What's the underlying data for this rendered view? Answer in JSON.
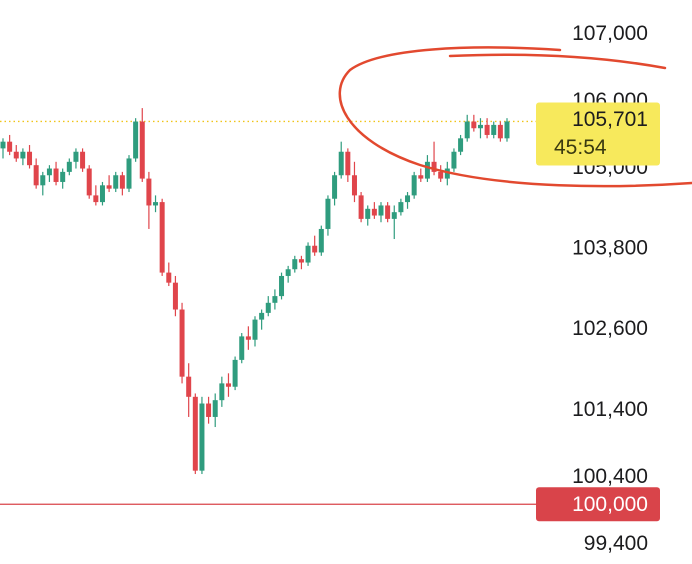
{
  "chart_data": {
    "type": "candlestick",
    "ylim": [
      99110,
      107510
    ],
    "yticks": [
      {
        "value": 107000,
        "label": "107,000"
      },
      {
        "value": 106000,
        "label": "106,000"
      },
      {
        "value": 105000,
        "label": "105,000"
      },
      {
        "value": 103800,
        "label": "103,800"
      },
      {
        "value": 102600,
        "label": "102,600"
      },
      {
        "value": 101400,
        "label": "101,400"
      },
      {
        "value": 100400,
        "label": "100,400"
      },
      {
        "value": 99400,
        "label": "99,400"
      }
    ],
    "up_color": "#2f9c7e",
    "down_color": "#e0454b",
    "candles": [
      [
        105300,
        105450,
        105150,
        105400
      ],
      [
        105400,
        105500,
        105200,
        105250
      ],
      [
        105250,
        105350,
        105100,
        105150
      ],
      [
        105150,
        105300,
        105050,
        105250
      ],
      [
        105250,
        105350,
        105000,
        105050
      ],
      [
        105050,
        105150,
        104700,
        104750
      ],
      [
        104750,
        104950,
        104600,
        104900
      ],
      [
        104900,
        105050,
        104800,
        105000
      ],
      [
        105000,
        105100,
        104750,
        104800
      ],
      [
        104800,
        105000,
        104700,
        104950
      ],
      [
        104950,
        105150,
        104900,
        105100
      ],
      [
        105100,
        105300,
        105000,
        105250
      ],
      [
        105250,
        105300,
        104950,
        105000
      ],
      [
        105000,
        105050,
        104550,
        104600
      ],
      [
        104600,
        104750,
        104450,
        104500
      ],
      [
        104500,
        104800,
        104450,
        104750
      ],
      [
        104750,
        104900,
        104650,
        104700
      ],
      [
        104700,
        104950,
        104650,
        104900
      ],
      [
        104900,
        104950,
        104600,
        104700
      ],
      [
        104700,
        105200,
        104650,
        105150
      ],
      [
        105150,
        105750,
        105100,
        105700
      ],
      [
        105700,
        105900,
        104800,
        104850
      ],
      [
        104850,
        104950,
        104100,
        104450
      ],
      [
        104450,
        104600,
        104350,
        104500
      ],
      [
        104500,
        104550,
        103400,
        103450
      ],
      [
        103450,
        103600,
        103250,
        103300
      ],
      [
        103300,
        103400,
        102800,
        102900
      ],
      [
        102900,
        103000,
        101800,
        101900
      ],
      [
        101900,
        102100,
        101300,
        101600
      ],
      [
        101600,
        101650,
        100450,
        100500
      ],
      [
        100500,
        101600,
        100450,
        101500
      ],
      [
        101500,
        101600,
        101200,
        101300
      ],
      [
        101300,
        101650,
        101150,
        101550
      ],
      [
        101550,
        101900,
        101450,
        101800
      ],
      [
        101800,
        101950,
        101600,
        101750
      ],
      [
        101750,
        102200,
        101700,
        102150
      ],
      [
        102150,
        102550,
        102100,
        102500
      ],
      [
        102500,
        102650,
        102300,
        102450
      ],
      [
        102450,
        102800,
        102350,
        102750
      ],
      [
        102750,
        102900,
        102600,
        102850
      ],
      [
        102850,
        103100,
        102800,
        103000
      ],
      [
        103000,
        103200,
        102900,
        103100
      ],
      [
        103100,
        103450,
        103050,
        103400
      ],
      [
        103400,
        103550,
        103300,
        103500
      ],
      [
        103500,
        103700,
        103450,
        103650
      ],
      [
        103650,
        103700,
        103500,
        103600
      ],
      [
        103600,
        103900,
        103550,
        103850
      ],
      [
        103850,
        104000,
        103700,
        103750
      ],
      [
        103750,
        104150,
        103700,
        104100
      ],
      [
        104100,
        104600,
        104000,
        104550
      ],
      [
        104550,
        104950,
        104450,
        104900
      ],
      [
        104900,
        105400,
        104850,
        105250
      ],
      [
        105250,
        105300,
        104800,
        104900
      ],
      [
        104900,
        105100,
        104500,
        104600
      ],
      [
        104600,
        104650,
        104200,
        104250
      ],
      [
        104250,
        104450,
        104150,
        104400
      ],
      [
        104400,
        104500,
        104250,
        104300
      ],
      [
        104300,
        104500,
        104200,
        104450
      ],
      [
        104450,
        104500,
        104200,
        104250
      ],
      [
        104250,
        104450,
        103950,
        104350
      ],
      [
        104350,
        104550,
        104300,
        104500
      ],
      [
        104500,
        104650,
        104400,
        104600
      ],
      [
        104600,
        104950,
        104550,
        104900
      ],
      [
        104900,
        105000,
        104800,
        104850
      ],
      [
        104850,
        105200,
        104800,
        105100
      ],
      [
        105100,
        105400,
        104900,
        104950
      ],
      [
        104950,
        105050,
        104800,
        104850
      ],
      [
        104850,
        105100,
        104750,
        105000
      ],
      [
        105000,
        105300,
        104950,
        105250
      ],
      [
        105250,
        105500,
        105200,
        105450
      ],
      [
        105450,
        105800,
        105400,
        105700
      ],
      [
        105700,
        105800,
        105550,
        105600
      ],
      [
        105600,
        105750,
        105450,
        105650
      ],
      [
        105650,
        105750,
        105450,
        105500
      ],
      [
        105500,
        105700,
        105450,
        105650
      ],
      [
        105650,
        105700,
        105400,
        105450
      ],
      [
        105450,
        105750,
        105400,
        105701
      ]
    ],
    "price_line": {
      "value": 105701,
      "label": "105,701",
      "countdown": "45:54",
      "color": "#f7e95c"
    },
    "reference_line": {
      "value": 100000,
      "label": "100,000",
      "color": "#d9444a"
    }
  }
}
